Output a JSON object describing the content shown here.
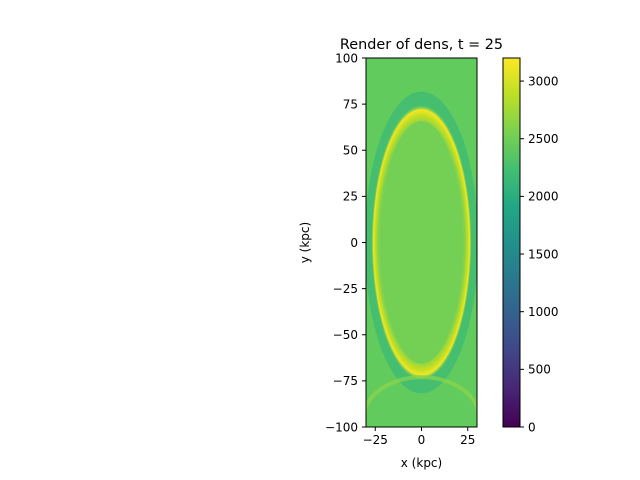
{
  "chart_data": {
    "type": "heatmap",
    "title": "Render of dens, t = 25",
    "xlabel": "x (kpc)",
    "ylabel": "y (kpc)",
    "xlim": [
      -30,
      30
    ],
    "ylim": [
      -100,
      100
    ],
    "x_ticks": [
      -25,
      0,
      25
    ],
    "y_ticks": [
      -100,
      -75,
      -50,
      -25,
      0,
      25,
      50,
      75,
      100
    ],
    "colormap": "viridis",
    "colorbar": {
      "range": [
        0,
        3200
      ],
      "ticks": [
        0,
        500,
        1000,
        1500,
        2000,
        2500,
        3000
      ]
    },
    "field": {
      "background_value": 2450,
      "interior_value": 2600,
      "shell_peak_value": 3150,
      "shell_center": [
        0,
        0
      ],
      "shell_semi_axes_kpc": [
        26,
        73
      ],
      "lower_trailing_arc_value": 2700
    },
    "grid": false
  }
}
